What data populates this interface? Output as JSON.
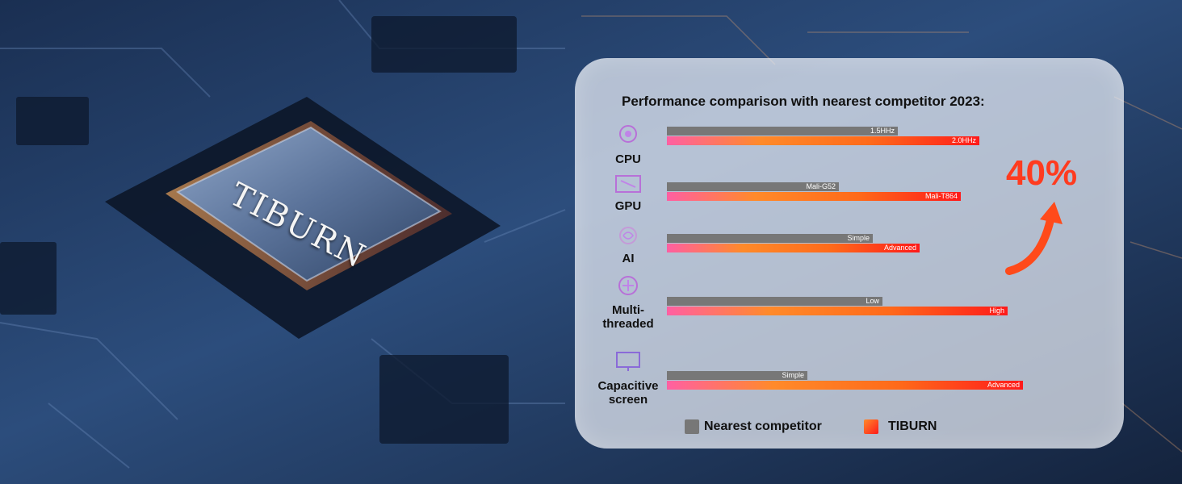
{
  "brand_chip_text": "TIBURN",
  "colors": {
    "competitor": "#777777",
    "tiburn": "#ff3a1a",
    "accent": "#ff3b1f"
  },
  "chart_data": {
    "type": "bar",
    "orientation": "horizontal",
    "title": "Performance comparison with nearest competitor 2023:",
    "categories": [
      "CPU",
      "GPU",
      "AI",
      "Multi-threaded",
      "Capacitive screen"
    ],
    "category_labels": [
      [
        "CPU"
      ],
      [
        "GPU"
      ],
      [
        "AI"
      ],
      [
        "Multi-",
        "threaded"
      ],
      [
        "Capacitive",
        "screen"
      ]
    ],
    "category_icons": [
      "cpu-icon",
      "gpu-icon",
      "ai-icon",
      "multithread-icon",
      "screen-icon"
    ],
    "series": [
      {
        "name": "Nearest competitor",
        "values": [
          0.74,
          0.55,
          0.66,
          0.69,
          0.45
        ],
        "labels": [
          "1.5HHz",
          "Mali-G52",
          "Simple",
          "Low",
          "Simple"
        ]
      },
      {
        "name": "TIBURN",
        "values": [
          1.0,
          0.94,
          0.81,
          1.09,
          1.14
        ],
        "labels": [
          "2.0HHz",
          "Mali-T864",
          "Advanced",
          "High",
          "Advanced"
        ]
      }
    ],
    "legend": [
      "Nearest competitor",
      "TIBURN"
    ],
    "legend_position": "bottom",
    "annotation": "40%"
  }
}
